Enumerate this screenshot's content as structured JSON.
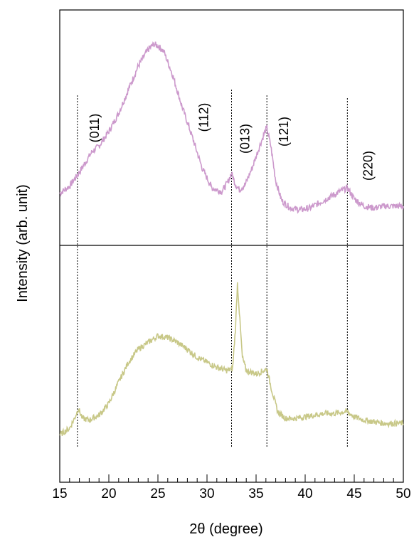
{
  "chart_data": {
    "type": "line",
    "xlabel": "2θ (degree)",
    "ylabel": "Intensity (arb. unit)",
    "xlim": [
      15,
      50
    ],
    "x_ticks": [
      15,
      20,
      25,
      30,
      35,
      40,
      45,
      50
    ],
    "grid": false,
    "legend": "none",
    "panels": "two stacked panels sharing the x axis (top, bottom)",
    "reference_lines": [
      {
        "x": 16.8,
        "label": "(011)"
      },
      {
        "x": 29.6,
        "label": "(112)"
      },
      {
        "x": 32.5,
        "label": "(013)"
      },
      {
        "x": 36.1,
        "label": "(121)"
      },
      {
        "x": 44.3,
        "label": "(220)"
      }
    ],
    "series": [
      {
        "panel": "top",
        "color": "#cc99cc",
        "x": [
          15,
          16,
          16.8,
          17.5,
          18.3,
          19,
          20,
          21,
          22,
          23,
          24,
          24.6,
          25,
          25.6,
          26.5,
          27.5,
          28.5,
          29.5,
          30.5,
          31.5,
          32.1,
          32.5,
          32.9,
          33.3,
          33.9,
          34.6,
          35.3,
          35.9,
          36.1,
          36.5,
          37,
          37.6,
          38.5,
          39.5,
          40.5,
          41.5,
          42.5,
          43.5,
          44.3,
          45,
          46,
          47,
          48,
          49,
          50
        ],
        "y": [
          0.18,
          0.22,
          0.28,
          0.34,
          0.41,
          0.44,
          0.52,
          0.62,
          0.75,
          0.88,
          0.97,
          1.0,
          0.99,
          0.96,
          0.83,
          0.65,
          0.49,
          0.32,
          0.21,
          0.19,
          0.24,
          0.29,
          0.23,
          0.2,
          0.23,
          0.32,
          0.43,
          0.52,
          0.54,
          0.44,
          0.25,
          0.14,
          0.1,
          0.09,
          0.1,
          0.13,
          0.16,
          0.19,
          0.21,
          0.15,
          0.11,
          0.1,
          0.11,
          0.11,
          0.11
        ]
      },
      {
        "panel": "bottom",
        "color": "#c8c888",
        "x": [
          15,
          16,
          16.5,
          16.9,
          17.3,
          18,
          19,
          20,
          21,
          22,
          23,
          24,
          25,
          26,
          27,
          28,
          29,
          30,
          31,
          32,
          32.6,
          32.9,
          33.1,
          33.3,
          33.6,
          34,
          35,
          35.8,
          36.1,
          36.6,
          37.2,
          38,
          39,
          40,
          41,
          42,
          43,
          44,
          44.3,
          45,
          46,
          47,
          48,
          49,
          50
        ],
        "y": [
          0.08,
          0.12,
          0.18,
          0.24,
          0.18,
          0.17,
          0.2,
          0.27,
          0.4,
          0.52,
          0.6,
          0.64,
          0.68,
          0.67,
          0.64,
          0.6,
          0.55,
          0.52,
          0.49,
          0.47,
          0.48,
          0.72,
          1.0,
          0.82,
          0.55,
          0.47,
          0.45,
          0.47,
          0.48,
          0.35,
          0.22,
          0.18,
          0.18,
          0.19,
          0.2,
          0.21,
          0.21,
          0.22,
          0.22,
          0.19,
          0.17,
          0.16,
          0.15,
          0.15,
          0.15
        ]
      }
    ]
  }
}
